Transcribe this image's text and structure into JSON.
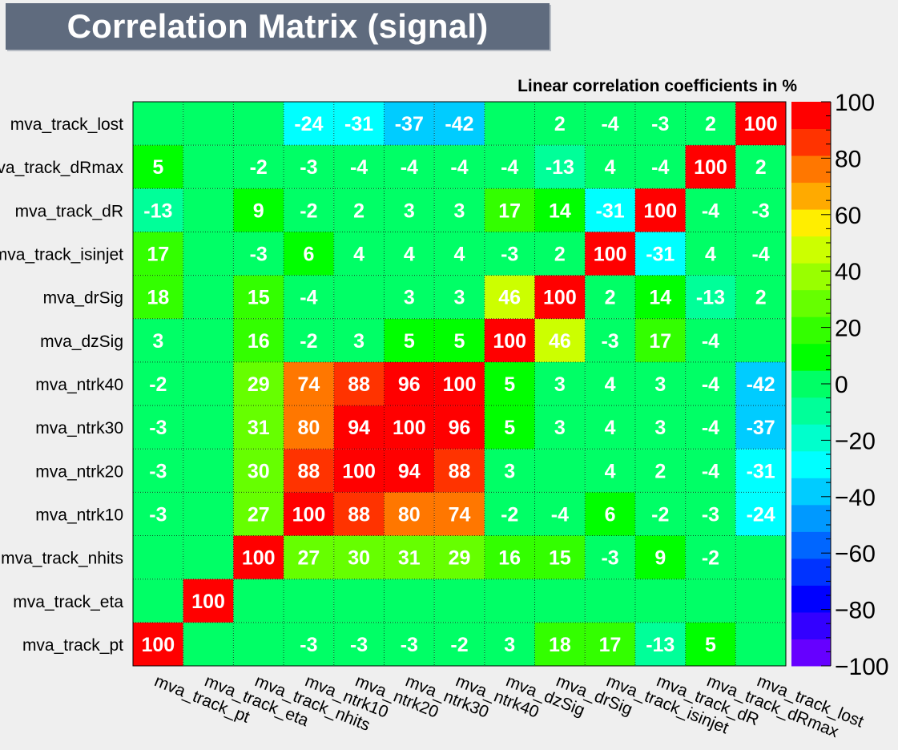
{
  "chart_data": {
    "type": "heatmap",
    "title": "Correlation Matrix (signal)",
    "subtitle": "Linear correlation coefficients in %",
    "variables": [
      "mva_track_pt",
      "mva_track_eta",
      "mva_track_nhits",
      "mva_ntrk10",
      "mva_ntrk20",
      "mva_ntrk30",
      "mva_ntrk40",
      "mva_dzSig",
      "mva_drSig",
      "mva_track_isinjet",
      "mva_track_dR",
      "mva_track_dRmax",
      "mva_track_lost"
    ],
    "matrix": [
      [
        100,
        null,
        null,
        -3,
        -3,
        -3,
        -2,
        3,
        18,
        17,
        -13,
        5,
        null
      ],
      [
        null,
        100,
        null,
        null,
        null,
        null,
        null,
        null,
        null,
        null,
        null,
        null,
        null
      ],
      [
        null,
        null,
        100,
        27,
        30,
        31,
        29,
        16,
        15,
        -3,
        9,
        -2,
        null
      ],
      [
        -3,
        null,
        27,
        100,
        88,
        80,
        74,
        -2,
        -4,
        6,
        -2,
        -3,
        -24
      ],
      [
        -3,
        null,
        30,
        88,
        100,
        94,
        88,
        3,
        null,
        4,
        2,
        -4,
        -31
      ],
      [
        -3,
        null,
        31,
        80,
        94,
        100,
        96,
        5,
        3,
        4,
        3,
        -4,
        -37
      ],
      [
        -2,
        null,
        29,
        74,
        88,
        96,
        100,
        5,
        3,
        4,
        3,
        -4,
        -42
      ],
      [
        3,
        null,
        16,
        -2,
        3,
        5,
        5,
        100,
        46,
        -3,
        17,
        -4,
        null
      ],
      [
        18,
        null,
        15,
        -4,
        null,
        3,
        3,
        46,
        100,
        2,
        14,
        -13,
        2
      ],
      [
        17,
        null,
        -3,
        6,
        4,
        4,
        4,
        -3,
        2,
        100,
        -31,
        4,
        -4
      ],
      [
        -13,
        null,
        9,
        -2,
        2,
        3,
        3,
        17,
        14,
        -31,
        100,
        -4,
        -3
      ],
      [
        5,
        null,
        -2,
        -3,
        -4,
        -4,
        -4,
        -4,
        -13,
        4,
        -4,
        100,
        2
      ],
      [
        null,
        null,
        null,
        -24,
        -31,
        -37,
        -42,
        null,
        2,
        -4,
        -3,
        2,
        100
      ]
    ],
    "zlim": [
      -100,
      100
    ],
    "z_ticks": [
      100,
      80,
      60,
      40,
      20,
      0,
      -20,
      -40,
      -60,
      -80,
      -100
    ],
    "z_tick_labels": [
      "100",
      "80",
      "60",
      "40",
      "20",
      "0",
      "−20",
      "−40",
      "−60",
      "−80",
      "−100"
    ],
    "palette": [
      "#6600ff",
      "#3300ff",
      "#0000ff",
      "#0033ff",
      "#0066ff",
      "#0099ff",
      "#00ccff",
      "#00ffff",
      "#00ffcc",
      "#00ff99",
      "#00ff66",
      "#00ff00",
      "#33ff00",
      "#66ff00",
      "#99ff00",
      "#ccff00",
      "#ffee00",
      "#ffaa00",
      "#ff7700",
      "#ff3300",
      "#ff0000"
    ]
  }
}
